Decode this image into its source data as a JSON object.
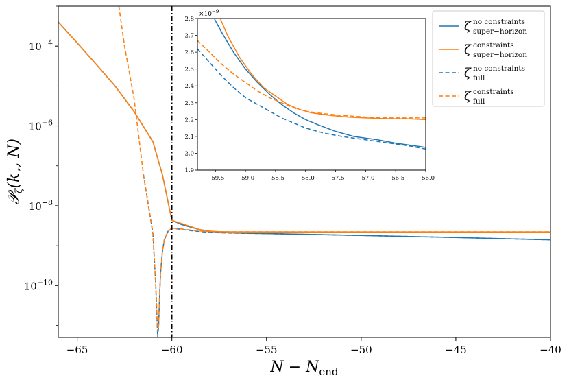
{
  "chart_data": [
    {
      "type": "line",
      "title": "",
      "xlabel": "N − N_end",
      "ylabel": "𝒫_ζ(k⋆, N)",
      "xlim": [
        -66,
        -40
      ],
      "ylim": [
        5e-12,
        0.001
      ],
      "yscale": "log",
      "grid": false,
      "legend_position": "top-right",
      "x_ticks": [
        -65,
        -60,
        -55,
        -50,
        -45,
        -40
      ],
      "x_tick_labels": [
        "−65",
        "−60",
        "−55",
        "−50",
        "−45",
        "−40"
      ],
      "y_ticks": [
        0.0001,
        1e-06,
        1e-08,
        1e-10
      ],
      "y_tick_labels": [
        {
          "base": "10",
          "exp": "−4"
        },
        {
          "base": "10",
          "exp": "−6"
        },
        {
          "base": "10",
          "exp": "−8"
        },
        {
          "base": "10",
          "exp": "−10"
        }
      ],
      "vline": {
        "x": -60,
        "style": "dash-dot",
        "color": "#000000"
      },
      "series": [
        {
          "name": "ζ no constraints super−horizon",
          "legend": {
            "sym": "ζ",
            "sup": "no constraints",
            "sub": "super−horizon"
          },
          "color": "#1f77b4",
          "dash": "solid",
          "x": [
            -66,
            -65,
            -64,
            -63,
            -62,
            -61,
            -60.5,
            -60,
            -59.5,
            -59,
            -58.5,
            -58,
            -57.5,
            -57,
            -56.5,
            -56,
            -55,
            -50,
            -45,
            -40
          ],
          "y": [
            0.0004,
            0.00012,
            3.5e-05,
            1e-05,
            2.3e-06,
            4e-07,
            6e-08,
            4.3e-09,
            3.4e-09,
            2.9e-09,
            2.5e-09,
            2.3e-09,
            2.15e-09,
            2.1e-09,
            2.07e-09,
            2.04e-09,
            2e-09,
            1.8e-09,
            1.6e-09,
            1.4e-09
          ]
        },
        {
          "name": "ζ constraints super−horizon",
          "legend": {
            "sym": "ζ",
            "sup": "constraints",
            "sub": "super−horizon"
          },
          "color": "#ff7f0e",
          "dash": "solid",
          "x": [
            -66,
            -65,
            -64,
            -63,
            -62,
            -61,
            -60.5,
            -60,
            -59.5,
            -59,
            -58.5,
            -58,
            -57.5,
            -57,
            -56.5,
            -56,
            -55,
            -50,
            -45,
            -40
          ],
          "y": [
            0.0004,
            0.00012,
            3.5e-05,
            1e-05,
            2.3e-06,
            4e-07,
            6e-08,
            4.3e-09,
            3.6e-09,
            3e-09,
            2.5e-09,
            2.3e-09,
            2.23e-09,
            2.21e-09,
            2.2e-09,
            2.2e-09,
            2.2e-09,
            2.2e-09,
            2.2e-09,
            2.2e-09
          ]
        },
        {
          "name": "ζ no constraints full",
          "legend": {
            "sym": "ζ",
            "sup": "no constraints",
            "sub": "full"
          },
          "color": "#1f77b4",
          "dash": "dashed",
          "x": [
            -61.5,
            -61.0,
            -60.85,
            -60.75,
            -60.7,
            -60.65,
            -60.6,
            -60.5,
            -60.4,
            -60.2,
            -60.0,
            -59.5,
            -59.0,
            -58.5,
            -58.0,
            -57.5,
            -57.0,
            -56.5,
            -56.0,
            -55,
            -50,
            -45,
            -40
          ],
          "y": [
            6e-08,
            2e-09,
            1e-10,
            5e-12,
            1e-11,
            5e-11,
            2e-10,
            7e-10,
            1.4e-09,
            2.3e-09,
            2.75e-09,
            2.55e-09,
            2.38e-09,
            2.25e-09,
            2.15e-09,
            2.1e-09,
            2.07e-09,
            2.05e-09,
            2.03e-09,
            2e-09,
            1.8e-09,
            1.6e-09,
            1.4e-09
          ]
        },
        {
          "name": "ζ constraints full",
          "legend": {
            "sym": "ζ",
            "sup": "constraints",
            "sub": "full"
          },
          "color": "#ff7f0e",
          "dash": "dashed",
          "x": [
            -62.8,
            -62.5,
            -62,
            -61.5,
            -61.0,
            -60.85,
            -60.75,
            -60.7,
            -60.65,
            -60.6,
            -60.5,
            -60.4,
            -60.2,
            -60.0,
            -59.5,
            -59.0,
            -58.5,
            -58.0,
            -57.5,
            -57.0,
            -56.5,
            -56.0,
            -55,
            -50,
            -45,
            -40
          ],
          "y": [
            0.001,
            0.0001,
            5e-06,
            6e-08,
            2e-09,
            1e-10,
            7e-12,
            1e-11,
            5e-11,
            2e-10,
            7e-10,
            1.4e-09,
            2.3e-09,
            2.75e-09,
            2.62e-09,
            2.45e-09,
            2.32e-09,
            2.25e-09,
            2.22e-09,
            2.21e-09,
            2.21e-09,
            2.21e-09,
            2.21e-09,
            2.21e-09,
            2.21e-09,
            2.21e-09
          ]
        }
      ]
    },
    {
      "type": "line",
      "title": "",
      "xlabel": "",
      "ylabel": "",
      "xlim": [
        -59.8,
        -56.0
      ],
      "ylim": [
        1.9,
        2.8
      ],
      "y_multiplier": "×10−9",
      "x_ticks": [
        -59.5,
        -59.0,
        -58.5,
        -58.0,
        -57.5,
        -57.0,
        -56.5,
        -56.0
      ],
      "x_tick_labels": [
        "−59.5",
        "−59.0",
        "−58.5",
        "−58.0",
        "−57.5",
        "−57.0",
        "−56.5",
        "−56.0"
      ],
      "y_ticks": [
        1.9,
        2.0,
        2.1,
        2.2,
        2.3,
        2.4,
        2.5,
        2.6,
        2.7,
        2.8
      ],
      "y_tick_labels": [
        "1.9",
        "2.0",
        "2.1",
        "2.2",
        "2.3",
        "2.4",
        "2.5",
        "2.6",
        "2.7",
        "2.8"
      ],
      "series": [
        {
          "name": "ζ no constraints super−horizon",
          "color": "#1f77b4",
          "dash": "solid",
          "x": [
            -59.52,
            -59.4,
            -59.2,
            -59.0,
            -58.8,
            -58.6,
            -58.4,
            -58.2,
            -58.0,
            -57.8,
            -57.5,
            -57.2,
            -57.0,
            -56.8,
            -56.5,
            -56.2,
            -56.0
          ],
          "y": [
            2.8,
            2.72,
            2.6,
            2.5,
            2.42,
            2.35,
            2.29,
            2.24,
            2.2,
            2.17,
            2.13,
            2.1,
            2.09,
            2.08,
            2.06,
            2.045,
            2.035
          ]
        },
        {
          "name": "ζ constraints super−horizon",
          "color": "#ff7f0e",
          "dash": "solid",
          "x": [
            -59.42,
            -59.3,
            -59.1,
            -58.9,
            -58.7,
            -58.5,
            -58.3,
            -58.1,
            -57.9,
            -57.6,
            -57.3,
            -57.0,
            -56.6,
            -56.3,
            -56.0
          ],
          "y": [
            2.8,
            2.7,
            2.57,
            2.47,
            2.39,
            2.34,
            2.29,
            2.26,
            2.24,
            2.225,
            2.215,
            2.21,
            2.205,
            2.205,
            2.2
          ]
        },
        {
          "name": "ζ no constraints full",
          "color": "#1f77b4",
          "dash": "dashed",
          "x": [
            -59.8,
            -59.6,
            -59.4,
            -59.2,
            -59.0,
            -58.8,
            -58.6,
            -58.4,
            -58.2,
            -58.0,
            -57.7,
            -57.4,
            -57.0,
            -56.6,
            -56.3,
            -56.0
          ],
          "y": [
            2.62,
            2.54,
            2.46,
            2.39,
            2.33,
            2.29,
            2.25,
            2.21,
            2.18,
            2.15,
            2.12,
            2.1,
            2.08,
            2.06,
            2.045,
            2.025
          ]
        },
        {
          "name": "ζ constraints full",
          "color": "#ff7f0e",
          "dash": "dashed",
          "x": [
            -59.8,
            -59.6,
            -59.4,
            -59.2,
            -59.0,
            -58.8,
            -58.6,
            -58.4,
            -58.2,
            -58.0,
            -57.7,
            -57.4,
            -57.0,
            -56.6,
            -56.3,
            -56.0
          ],
          "y": [
            2.67,
            2.6,
            2.53,
            2.47,
            2.42,
            2.37,
            2.33,
            2.3,
            2.27,
            2.25,
            2.235,
            2.225,
            2.215,
            2.21,
            2.21,
            2.21
          ]
        }
      ]
    }
  ]
}
